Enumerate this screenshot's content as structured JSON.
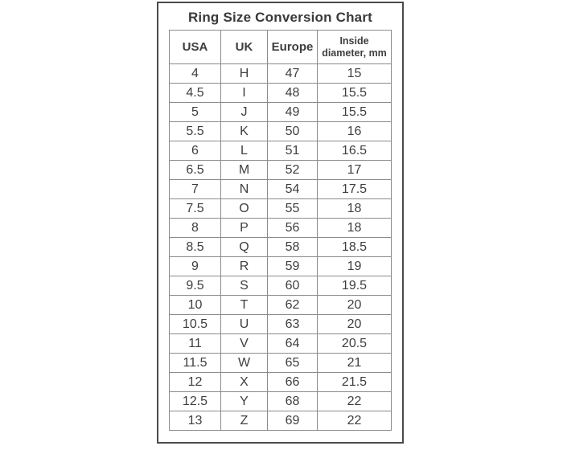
{
  "chart_data": {
    "type": "table",
    "title": "Ring Size Conversion Chart",
    "columns": [
      "USA",
      "UK",
      "Europe",
      "Inside diameter, mm"
    ],
    "rows": [
      [
        "4",
        "H",
        "47",
        "15"
      ],
      [
        "4.5",
        "I",
        "48",
        "15.5"
      ],
      [
        "5",
        "J",
        "49",
        "15.5"
      ],
      [
        "5.5",
        "K",
        "50",
        "16"
      ],
      [
        "6",
        "L",
        "51",
        "16.5"
      ],
      [
        "6.5",
        "M",
        "52",
        "17"
      ],
      [
        "7",
        "N",
        "54",
        "17.5"
      ],
      [
        "7.5",
        "O",
        "55",
        "18"
      ],
      [
        "8",
        "P",
        "56",
        "18"
      ],
      [
        "8.5",
        "Q",
        "58",
        "18.5"
      ],
      [
        "9",
        "R",
        "59",
        "19"
      ],
      [
        "9.5",
        "S",
        "60",
        "19.5"
      ],
      [
        "10",
        "T",
        "62",
        "20"
      ],
      [
        "10.5",
        "U",
        "63",
        "20"
      ],
      [
        "11",
        "V",
        "64",
        "20.5"
      ],
      [
        "11.5",
        "W",
        "65",
        "21"
      ],
      [
        "12",
        "X",
        "66",
        "21.5"
      ],
      [
        "12.5",
        "Y",
        "68",
        "22"
      ],
      [
        "13",
        "Z",
        "69",
        "22"
      ]
    ]
  },
  "colors": {
    "outer_border": "#4a4a4e",
    "inner_border": "#8b8b8e",
    "text": "#3e3e42",
    "background": "#ffffff"
  }
}
